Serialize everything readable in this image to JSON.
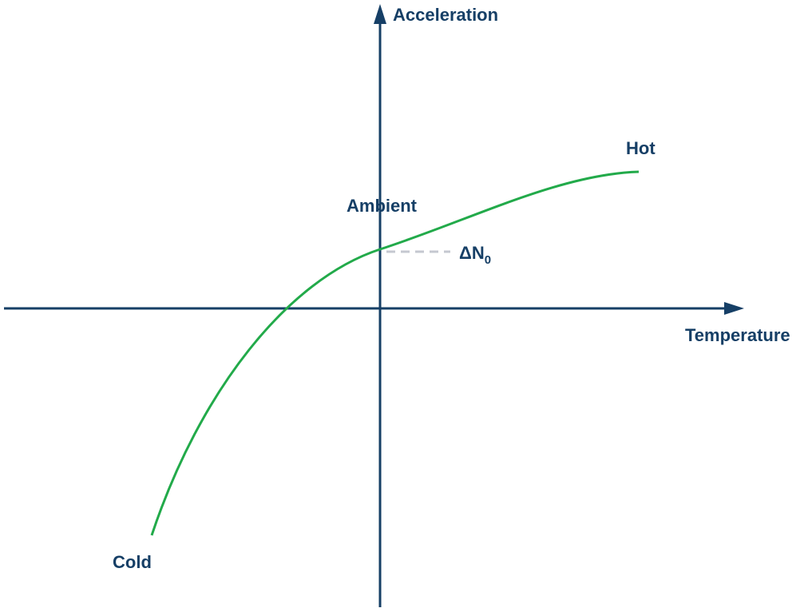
{
  "axes": {
    "y_label": "Acceleration",
    "x_label": "Temperature"
  },
  "curve": {
    "start_label": "Cold",
    "end_label": "Hot"
  },
  "ambient_label": "Ambient",
  "offset_label": {
    "main": "ΔN",
    "subscript": "0"
  }
}
